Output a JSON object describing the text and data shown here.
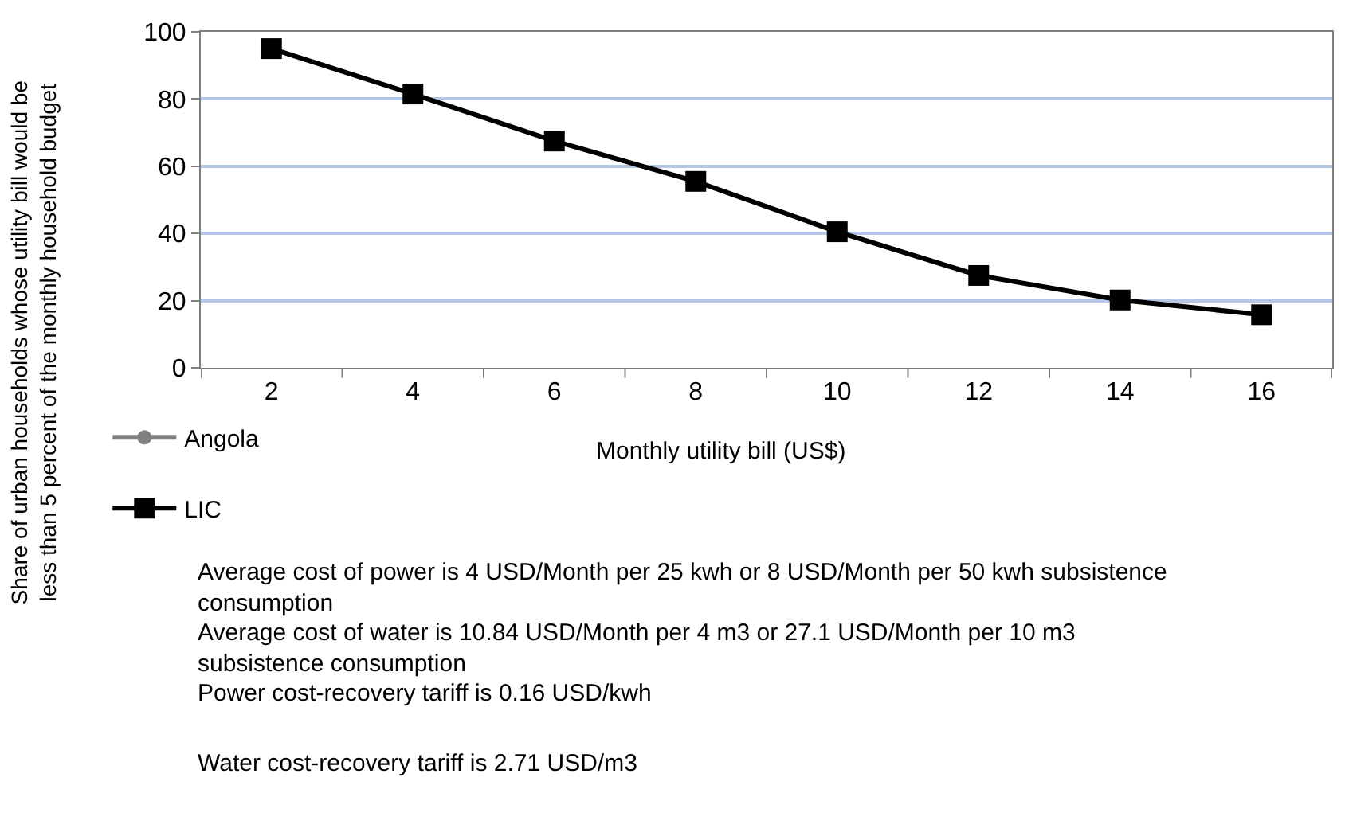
{
  "chart_data": {
    "type": "line",
    "ylabel": "Share of urban households whose utility bill would be less than 5 percent of the monthly household budget",
    "xlabel": "Monthly utility bill (US$)",
    "categories": [
      "2",
      "4",
      "6",
      "8",
      "10",
      "12",
      "14",
      "16"
    ],
    "series": [
      {
        "name": "Angola",
        "color": "#808080",
        "marker": "circle",
        "values": [
          null,
          null,
          null,
          null,
          null,
          null,
          null,
          null
        ]
      },
      {
        "name": "LIC",
        "color": "#000000",
        "marker": "square",
        "values": [
          95,
          81.5,
          67.5,
          55.5,
          40.5,
          27.5,
          20.2,
          15.8
        ]
      }
    ],
    "ylim": [
      0,
      100
    ],
    "yticks": [
      0,
      20,
      40,
      60,
      80,
      100
    ],
    "grid": "y",
    "legend": "bottom left",
    "line_style": "solid",
    "annotations": [
      "Average cost of power is 4 USD/Month per 25 kwh or 8 USD/Month per 50 kwh subsistence consumption",
      "Average cost of water is 10.84 USD/Month per 4 m3 or 27.1 USD/Month per 10 m3 subsistence consumption",
      "Power cost-recovery tariff is 0.16 USD/kwh",
      "Water cost-recovery tariff is 2.71 USD/m3"
    ]
  }
}
